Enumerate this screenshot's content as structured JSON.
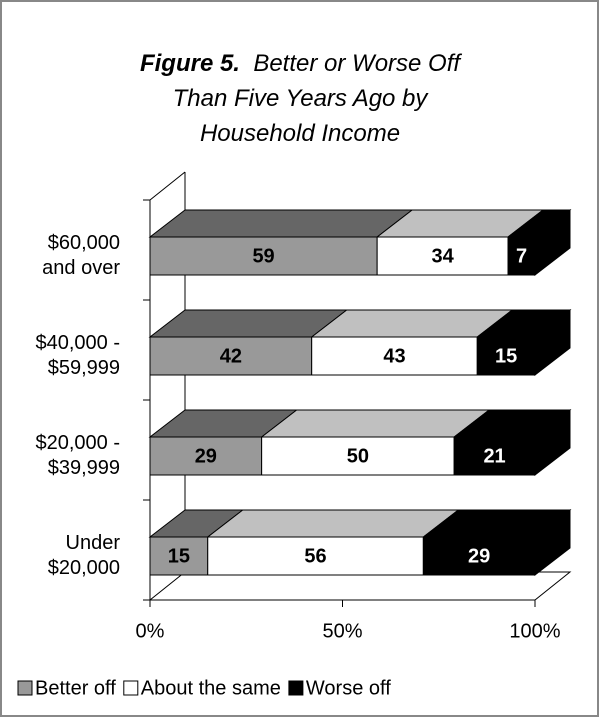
{
  "chart_data": {
    "type": "bar3d_stacked_horizontal",
    "figure_label": "Figure 5.",
    "title": "Better or Worse Off Than Five Years Ago by Household Income",
    "categories": [
      "$60,000 and over",
      "$40,000 - $59,999",
      "$20,000 - $39,999",
      "Under $20,000"
    ],
    "series": [
      {
        "name": "Better off",
        "color": "#999999",
        "top_color": "#666666",
        "label_color": "#000000",
        "values": [
          59,
          42,
          29,
          15
        ]
      },
      {
        "name": "About the same",
        "color": "#ffffff",
        "top_color": "#c0c0c0",
        "label_color": "#000000",
        "values": [
          34,
          43,
          50,
          56
        ]
      },
      {
        "name": "Worse off",
        "color": "#000000",
        "top_color": "#000000",
        "label_color": "#ffffff",
        "values": [
          7,
          15,
          21,
          29
        ]
      }
    ],
    "xlim": [
      0,
      100
    ],
    "xticks": [
      {
        "value": 0,
        "label": "0%"
      },
      {
        "value": 50,
        "label": "50%"
      },
      {
        "value": 100,
        "label": "100%"
      }
    ],
    "legend": "bottom"
  }
}
